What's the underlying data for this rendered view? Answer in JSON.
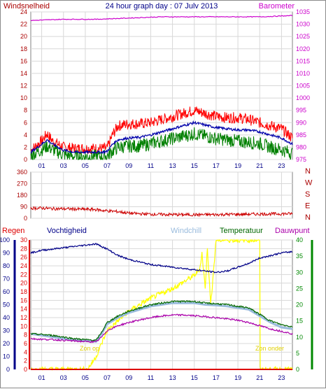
{
  "chart_data": [
    {
      "type": "line",
      "panel": "wind-barometer",
      "title": "24 hour graph day : 07 Julv 2013",
      "left_axis_label": "Windsnelheid",
      "right_axis_label": "Barometer",
      "left_ticks": [
        "0",
        "2",
        "4",
        "6",
        "8",
        "10",
        "12",
        "14",
        "16",
        "18",
        "20",
        "22",
        "24"
      ],
      "left_ylim": [
        0,
        24
      ],
      "right_ticks": [
        "975",
        "980",
        "985",
        "990",
        "995",
        "1000",
        "1005",
        "1010",
        "1015",
        "1020",
        "1025",
        "1030",
        "1035"
      ],
      "right_ylim": [
        975,
        1035
      ],
      "x_ticks": [
        "01",
        "03",
        "05",
        "07",
        "09",
        "11",
        "13",
        "15",
        "17",
        "19",
        "21",
        "23"
      ],
      "xlim": [
        0,
        24
      ],
      "grid": true,
      "colors": {
        "gust": "#ff0000",
        "average": "#0000aa",
        "wind": "#008000",
        "barometer": "#cc00cc",
        "left_axis": "#aa0000",
        "right_axis": "#cc00cc",
        "title": "#000088"
      },
      "series": [
        {
          "key": "gust",
          "x": [
            0,
            1,
            1.5,
            2,
            2.5,
            3,
            4,
            5,
            6,
            6.5,
            7,
            7.5,
            8,
            9,
            10,
            11,
            12,
            13,
            14,
            15,
            16,
            17,
            18,
            19,
            20,
            21,
            22,
            23,
            24
          ],
          "values": [
            1.5,
            3,
            4.2,
            3,
            2.5,
            2,
            1.8,
            1.8,
            1.8,
            1.8,
            1.8,
            4,
            5.5,
            5.8,
            5.8,
            6,
            6.5,
            7,
            7.5,
            8,
            7.5,
            7,
            6.8,
            6.8,
            6.5,
            6,
            5.5,
            5,
            3.5
          ]
        },
        {
          "key": "average",
          "x": [
            0,
            1,
            1.5,
            2,
            2.5,
            3,
            4,
            5,
            6,
            6.5,
            7,
            7.5,
            8,
            9,
            10,
            11,
            12,
            13,
            14,
            15,
            16,
            17,
            18,
            19,
            20,
            21,
            22,
            23,
            24
          ],
          "values": [
            1.2,
            2.5,
            3.2,
            2.5,
            2,
            1.5,
            1.2,
            1.2,
            1.2,
            1.2,
            1.3,
            2.5,
            3.2,
            3.5,
            3.6,
            4,
            4.5,
            5,
            5.5,
            6,
            5.6,
            5.2,
            5,
            4.8,
            4.8,
            4.5,
            4,
            3.5,
            2.5
          ]
        },
        {
          "key": "wind",
          "x": [
            0,
            1,
            1.5,
            2,
            2.5,
            3,
            4,
            5,
            6,
            6.5,
            7,
            7.5,
            8,
            9,
            10,
            11,
            12,
            13,
            14,
            15,
            16,
            17,
            18,
            19,
            20,
            21,
            22,
            23,
            24
          ],
          "values": [
            0.6,
            1.6,
            2.2,
            1.6,
            1.2,
            0.8,
            0.5,
            0.5,
            0.5,
            0.5,
            0.6,
            1.4,
            2,
            2.2,
            2.2,
            2.6,
            3,
            3.4,
            3.8,
            4.2,
            3.8,
            3.4,
            3.2,
            3,
            2.8,
            2.6,
            2,
            1.6,
            1
          ]
        },
        {
          "key": "barometer",
          "x": [
            0,
            3,
            6,
            9,
            12,
            15,
            18,
            21,
            24
          ],
          "values": [
            1031.5,
            1032,
            1032,
            1032.5,
            1033,
            1033,
            1033,
            1033,
            1033.5
          ]
        }
      ]
    },
    {
      "type": "line",
      "panel": "wind-direction",
      "left_ticks": [
        "0",
        "90",
        "180",
        "270",
        "360"
      ],
      "ylim": [
        0,
        360
      ],
      "right_labels": [
        "N",
        "W",
        "S",
        "E",
        "N"
      ],
      "colors": {
        "direction": "#cc0000"
      },
      "series": [
        {
          "key": "direction",
          "x": [
            0,
            1,
            2,
            3,
            4,
            5,
            6,
            6.5,
            7,
            8,
            9,
            10,
            12,
            14,
            16,
            18,
            20,
            22,
            24
          ],
          "values": [
            78,
            80,
            75,
            74,
            72,
            70,
            68,
            62,
            58,
            52,
            40,
            35,
            30,
            28,
            28,
            30,
            32,
            34,
            36
          ]
        }
      ]
    },
    {
      "type": "line",
      "panel": "rain-humidity-temperature",
      "legend": [
        "Regen",
        "Vochtigheid",
        "Windchill",
        "Temperatuur",
        "Dauwpunt"
      ],
      "rain_ticks": [
        "0",
        "2",
        "4",
        "6",
        "8",
        "10",
        "12",
        "14",
        "16",
        "18",
        "20",
        "22",
        "24",
        "26",
        "28",
        "30"
      ],
      "rain_ylim": [
        0,
        30
      ],
      "humidity_ticks": [
        "0",
        "10",
        "20",
        "30",
        "40",
        "50",
        "60",
        "70",
        "80",
        "90",
        "100"
      ],
      "humidity_ylim": [
        0,
        100
      ],
      "temperature_ticks": [
        "0",
        "5",
        "10",
        "15",
        "20",
        "25",
        "30",
        "35",
        "40"
      ],
      "temperature_ylim": [
        0,
        40
      ],
      "x_ticks": [
        "01",
        "03",
        "05",
        "07",
        "09",
        "11",
        "13",
        "15",
        "17",
        "19",
        "21",
        "23"
      ],
      "xlim": [
        0,
        24
      ],
      "annotations": [
        "Zon op",
        "Zon onder"
      ],
      "colors": {
        "rain": "#dd0000",
        "humidity": "#000088",
        "windchill": "#99bbdd",
        "temperature": "#006600",
        "dewpoint": "#aa00aa",
        "solar": "#ffff00",
        "rain_axis": "#dd0000",
        "humidity_axis": "#000088",
        "temperature_axis": "#008800"
      },
      "series": [
        {
          "key": "humidity",
          "x": [
            0,
            1,
            2,
            3,
            4,
            5,
            6,
            6.5,
            7,
            8,
            9,
            10,
            11,
            12,
            13,
            14,
            15,
            16,
            17,
            18,
            19,
            20,
            21,
            22,
            23,
            24
          ],
          "values": [
            90,
            92,
            93,
            94,
            95,
            96,
            97,
            95,
            93,
            88,
            85,
            83,
            81,
            80,
            79,
            78,
            77,
            76,
            75,
            76,
            79,
            82,
            86,
            88,
            90,
            91
          ]
        },
        {
          "key": "windchill",
          "x": [
            0,
            1,
            2,
            3,
            4,
            5,
            6,
            6.5,
            7,
            8,
            9,
            10,
            11,
            12,
            13,
            14,
            15,
            16,
            17,
            18,
            19,
            20,
            21,
            22,
            23,
            24
          ],
          "values": [
            11,
            10.5,
            10,
            9.5,
            9,
            8.8,
            8.6,
            11,
            14,
            16,
            17.5,
            18.5,
            19.5,
            20,
            20.5,
            20.5,
            20.5,
            20,
            19.8,
            19.5,
            19,
            18.5,
            16.5,
            14.5,
            13,
            12.5
          ]
        },
        {
          "key": "temperature",
          "x": [
            0,
            1,
            2,
            3,
            4,
            5,
            6,
            6.5,
            7,
            8,
            9,
            10,
            11,
            12,
            13,
            14,
            15,
            16,
            17,
            18,
            19,
            20,
            21,
            22,
            23,
            24
          ],
          "values": [
            11,
            10.8,
            10.5,
            10,
            9.5,
            9.2,
            9,
            11.5,
            14.5,
            16.5,
            18,
            19,
            20,
            20.5,
            21,
            21,
            21,
            20.5,
            20.3,
            20,
            19.5,
            19,
            17,
            15,
            13.8,
            13.2
          ]
        },
        {
          "key": "dewpoint",
          "x": [
            0,
            1,
            2,
            3,
            4,
            5,
            6,
            6.5,
            7,
            8,
            9,
            10,
            11,
            12,
            13,
            14,
            15,
            16,
            17,
            18,
            19,
            20,
            21,
            22,
            23,
            24
          ],
          "values": [
            9.5,
            9.3,
            9.2,
            9,
            8.8,
            8.6,
            8.5,
            10,
            12,
            13.5,
            14.5,
            15.3,
            16,
            16.5,
            16.8,
            16.8,
            16.6,
            16.3,
            16,
            15.6,
            15.2,
            14.5,
            13.5,
            12.5,
            11.8,
            11
          ]
        },
        {
          "key": "solar",
          "x": [
            0,
            4,
            5.2,
            5.5,
            6,
            6.5,
            7,
            8,
            9,
            10,
            11,
            12,
            13,
            14,
            15,
            15.5,
            15.7,
            16,
            16.2,
            16.5,
            17,
            18,
            19,
            20,
            21,
            21.05,
            24
          ],
          "values": [
            0,
            0,
            0,
            1.5,
            4,
            8,
            12,
            15,
            18,
            20,
            22,
            23.5,
            25,
            27,
            29,
            31,
            36,
            25,
            38,
            20,
            40,
            40,
            40,
            40,
            40,
            0,
            0
          ]
        },
        {
          "key": "rain",
          "x": [
            0,
            24
          ],
          "values": [
            0,
            0
          ]
        }
      ]
    }
  ]
}
